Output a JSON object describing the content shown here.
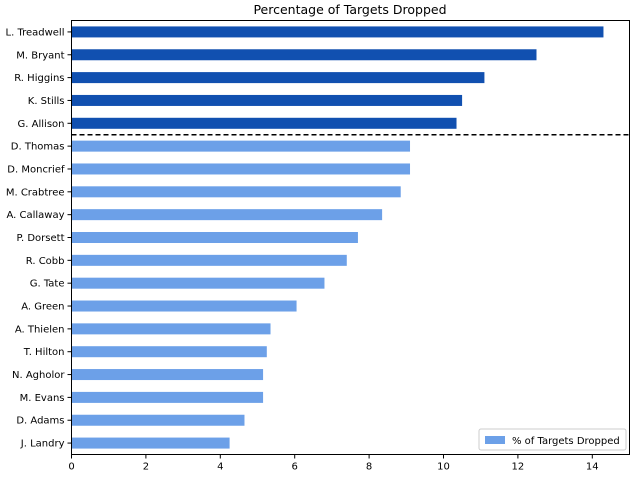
{
  "chart_data": {
    "type": "bar",
    "orientation": "horizontal",
    "title": "Percentage of Targets Dropped",
    "xlabel": "",
    "ylabel": "",
    "xlim": [
      0,
      15
    ],
    "xticks": [
      0,
      2,
      4,
      6,
      8,
      10,
      12,
      14
    ],
    "grid": false,
    "legend_position": "bottom-right",
    "series": [
      {
        "name": "% of Targets Dropped",
        "color": "#6ca0e8",
        "highlight_color": "#1150b0"
      }
    ],
    "categories": [
      "L. Treadwell",
      "M. Bryant",
      "R. Higgins",
      "K. Stills",
      "G. Allison",
      "D. Thomas",
      "D. Moncrief",
      "M. Crabtree",
      "A. Callaway",
      "P. Dorsett",
      "R. Cobb",
      "G. Tate",
      "A. Green",
      "A. Thielen",
      "T. Hilton",
      "N. Agholor",
      "M. Evans",
      "D. Adams",
      "J. Landry"
    ],
    "values": [
      14.3,
      12.5,
      11.1,
      10.5,
      10.35,
      9.1,
      9.1,
      8.85,
      8.35,
      7.7,
      7.4,
      6.8,
      6.05,
      5.35,
      5.25,
      5.15,
      5.15,
      4.65,
      4.25
    ],
    "highlighted_count": 5,
    "divider": {
      "after_index": 4,
      "style": "dashed",
      "color": "#000000"
    }
  }
}
